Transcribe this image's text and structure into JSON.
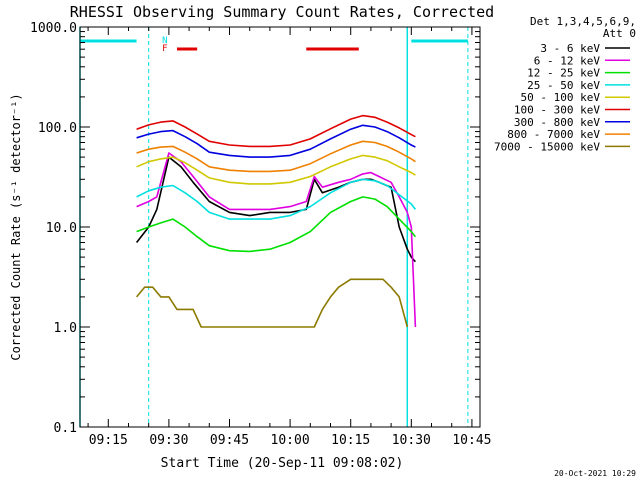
{
  "chart_data": {
    "type": "line",
    "title": "RHESSI Observing Summary Count Rates, Corrected",
    "xlabel": "Start Time (20-Sep-11 09:08:02)",
    "ylabel": "Corrected Count Rate (s⁻¹ detector⁻¹)",
    "yscale": "log",
    "xlim": [
      "09:08",
      "10:47"
    ],
    "ylim": [
      0.1,
      1000.0
    ],
    "x_ticks": [
      "09:15",
      "09:30",
      "09:45",
      "10:00",
      "10:15",
      "10:30",
      "10:45"
    ],
    "y_ticks": [
      "0.1",
      "1.0",
      "10.0",
      "100.0",
      "1000.0"
    ],
    "legend_header": [
      "Det 1,3,4,5,6,9,",
      "Att 0"
    ],
    "legend_position": "right",
    "series": [
      {
        "name": "3 - 6 keV",
        "color": "#000000",
        "x": [
          "09:22",
          "09:25",
          "09:27",
          "09:30",
          "09:33",
          "09:36",
          "09:40",
          "09:45",
          "09:50",
          "09:55",
          "10:00",
          "10:04",
          "10:06",
          "10:08",
          "10:12",
          "10:15",
          "10:18",
          "10:20",
          "10:22",
          "10:25",
          "10:27",
          "10:29",
          "10:30",
          "10:31"
        ],
        "y": [
          7,
          10,
          15,
          50,
          40,
          28,
          18,
          14,
          13,
          14,
          14,
          15,
          30,
          22,
          25,
          28,
          30,
          30,
          28,
          25,
          10,
          6,
          5,
          4.5
        ]
      },
      {
        "name": "6 - 12 keV",
        "color": "#e000e0",
        "x": [
          "09:22",
          "09:25",
          "09:27",
          "09:30",
          "09:33",
          "09:36",
          "09:40",
          "09:45",
          "09:50",
          "09:55",
          "10:00",
          "10:04",
          "10:06",
          "10:08",
          "10:12",
          "10:15",
          "10:18",
          "10:20",
          "10:22",
          "10:25",
          "10:27",
          "10:29",
          "10:30",
          "10:31"
        ],
        "y": [
          16,
          18,
          20,
          55,
          45,
          32,
          20,
          15,
          15,
          15,
          16,
          18,
          32,
          25,
          28,
          30,
          34,
          35,
          32,
          28,
          20,
          14,
          10,
          1
        ]
      },
      {
        "name": "12 - 25 keV",
        "color": "#00e000",
        "x": [
          "09:22",
          "09:25",
          "09:28",
          "09:31",
          "09:34",
          "09:37",
          "09:40",
          "09:45",
          "09:50",
          "09:55",
          "10:00",
          "10:05",
          "10:10",
          "10:15",
          "10:18",
          "10:21",
          "10:24",
          "10:27",
          "10:30",
          "10:31"
        ],
        "y": [
          9,
          10,
          11,
          12,
          10,
          8,
          6.5,
          5.8,
          5.7,
          6,
          7,
          9,
          14,
          18,
          20,
          19,
          16,
          12,
          9,
          8
        ]
      },
      {
        "name": "25 - 50 keV",
        "color": "#00e0e0",
        "x": [
          "09:22",
          "09:25",
          "09:28",
          "09:31",
          "09:34",
          "09:37",
          "09:40",
          "09:45",
          "09:50",
          "09:55",
          "10:00",
          "10:05",
          "10:10",
          "10:15",
          "10:18",
          "10:21",
          "10:24",
          "10:27",
          "10:30",
          "10:31"
        ],
        "y": [
          20,
          23,
          25,
          26,
          22,
          18,
          14,
          12,
          12,
          12,
          13,
          16,
          22,
          28,
          30,
          29,
          26,
          21,
          17,
          15
        ]
      },
      {
        "name": "50 - 100 keV",
        "color": "#d0c800",
        "x": [
          "09:22",
          "09:25",
          "09:28",
          "09:31",
          "09:34",
          "09:37",
          "09:40",
          "09:45",
          "09:50",
          "09:55",
          "10:00",
          "10:05",
          "10:10",
          "10:15",
          "10:18",
          "10:21",
          "10:24",
          "10:27",
          "10:30",
          "10:31"
        ],
        "y": [
          40,
          45,
          48,
          50,
          44,
          37,
          31,
          28,
          27,
          27,
          28,
          32,
          40,
          48,
          52,
          50,
          46,
          40,
          35,
          33
        ]
      },
      {
        "name": "100 - 300 keV",
        "color": "#e00000",
        "x": [
          "09:22",
          "09:25",
          "09:28",
          "09:31",
          "09:34",
          "09:37",
          "09:40",
          "09:45",
          "09:50",
          "09:55",
          "10:00",
          "10:05",
          "10:10",
          "10:15",
          "10:18",
          "10:21",
          "10:24",
          "10:27",
          "10:30",
          "10:31"
        ],
        "y": [
          95,
          105,
          112,
          115,
          100,
          85,
          72,
          66,
          64,
          64,
          66,
          76,
          96,
          120,
          130,
          125,
          112,
          98,
          84,
          80
        ]
      },
      {
        "name": "300 - 800 keV",
        "color": "#0000e0",
        "x": [
          "09:22",
          "09:25",
          "09:28",
          "09:31",
          "09:34",
          "09:37",
          "09:40",
          "09:45",
          "09:50",
          "09:55",
          "10:00",
          "10:05",
          "10:10",
          "10:15",
          "10:18",
          "10:21",
          "10:24",
          "10:27",
          "10:30",
          "10:31"
        ],
        "y": [
          78,
          85,
          90,
          92,
          80,
          68,
          56,
          52,
          50,
          50,
          52,
          60,
          76,
          95,
          104,
          100,
          90,
          78,
          66,
          63
        ]
      },
      {
        "name": "800 - 7000 keV",
        "color": "#f08000",
        "x": [
          "09:22",
          "09:25",
          "09:28",
          "09:31",
          "09:34",
          "09:37",
          "09:40",
          "09:45",
          "09:50",
          "09:55",
          "10:00",
          "10:05",
          "10:10",
          "10:15",
          "10:18",
          "10:21",
          "10:24",
          "10:27",
          "10:30",
          "10:31"
        ],
        "y": [
          55,
          60,
          63,
          64,
          56,
          48,
          40,
          37,
          36,
          36,
          37,
          43,
          54,
          66,
          72,
          70,
          64,
          56,
          48,
          45
        ]
      },
      {
        "name": "7000 - 15000 keV",
        "color": "#8c7a00",
        "x": [
          "09:22",
          "09:24",
          "09:26",
          "09:28",
          "09:30",
          "09:32",
          "09:34",
          "09:36",
          "09:38",
          "09:40",
          "09:45",
          "09:50",
          "09:55",
          "10:00",
          "10:03",
          "10:06",
          "10:08",
          "10:10",
          "10:12",
          "10:15",
          "10:18",
          "10:21",
          "10:23",
          "10:25",
          "10:27",
          "10:29"
        ],
        "y": [
          2,
          2.5,
          2.5,
          2,
          2,
          1.5,
          1.5,
          1.5,
          1,
          1,
          1,
          1,
          1,
          1,
          1,
          1,
          1.5,
          2,
          2.5,
          3,
          3,
          3,
          3,
          2.5,
          2,
          1
        ]
      }
    ],
    "flags": [
      {
        "name": "saa",
        "color": "#00e0e0",
        "segments": [
          [
            "09:08",
            "09:22"
          ],
          [
            "10:30",
            "10:44"
          ]
        ]
      },
      {
        "name": "flare",
        "color": "#e00000",
        "segments": [
          [
            "09:32",
            "09:37"
          ],
          [
            "10:04",
            "10:17"
          ]
        ]
      }
    ],
    "flag_labels": [
      {
        "text": "N",
        "color": "#00e0e0",
        "x": "09:29"
      },
      {
        "text": "F",
        "color": "#e00000",
        "x": "09:29"
      }
    ],
    "vertical_lines": {
      "solid": [
        "09:08",
        "10:29"
      ],
      "dashed": [
        "09:25",
        "10:44"
      ],
      "color": "#00e0e0"
    },
    "background_color": "#ffffff",
    "frame_color": "#000000",
    "footer_date": "20-Oct-2021 10:29"
  }
}
